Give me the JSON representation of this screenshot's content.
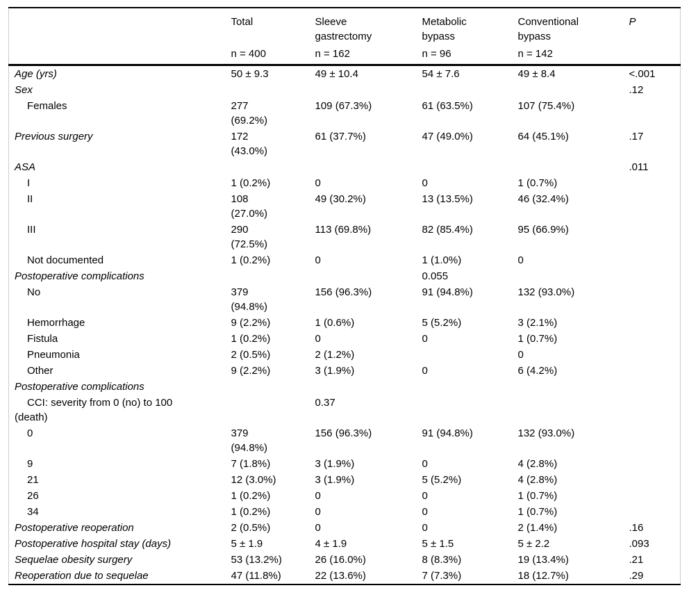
{
  "table": {
    "columns": [
      {
        "key": "rowlabel",
        "label": "",
        "sub": ""
      },
      {
        "key": "total",
        "label": "Total",
        "sub": "n = 400"
      },
      {
        "key": "sleeve",
        "label": "Sleeve\ngastrectomy",
        "sub": "n = 162"
      },
      {
        "key": "metabolic",
        "label": "Metabolic\nbypass",
        "sub": "n = 96"
      },
      {
        "key": "conventional",
        "label": "Conventional\nbypass",
        "sub": "n = 142"
      },
      {
        "key": "p",
        "label": "P",
        "sub": ""
      }
    ],
    "rows": [
      {
        "label": "Age (yrs)",
        "style": "category",
        "cells": [
          "50 ± 9.3",
          "49 ± 10.4",
          "54 ± 7.6",
          "49 ± 8.4",
          "<.001"
        ]
      },
      {
        "label": "Sex",
        "style": "category",
        "cells": [
          "",
          "",
          "",
          "",
          ".12"
        ]
      },
      {
        "label": "Females",
        "style": "item",
        "cells": [
          "277\n(69.2%)",
          "109 (67.3%)",
          "61 (63.5%)",
          "107 (75.4%)",
          ""
        ]
      },
      {
        "label": "Previous surgery",
        "style": "category",
        "cells": [
          "172\n(43.0%)",
          "61 (37.7%)",
          "47 (49.0%)",
          "64 (45.1%)",
          ".17"
        ]
      },
      {
        "label": "ASA",
        "style": "category",
        "cells": [
          "",
          "",
          "",
          "",
          ".011"
        ]
      },
      {
        "label": "I",
        "style": "item",
        "cells": [
          "1 (0.2%)",
          "0",
          "0",
          "1 (0.7%)",
          ""
        ]
      },
      {
        "label": "II",
        "style": "item",
        "cells": [
          "108\n(27.0%)",
          "49 (30.2%)",
          "13 (13.5%)",
          "46 (32.4%)",
          ""
        ]
      },
      {
        "label": "III",
        "style": "item",
        "cells": [
          "290\n(72.5%)",
          "113 (69.8%)",
          "82 (85.4%)",
          "95 (66.9%)",
          ""
        ]
      },
      {
        "label": "Not documented",
        "style": "item",
        "cells": [
          "1 (0.2%)",
          "0",
          "1 (1.0%)",
          "0",
          ""
        ]
      },
      {
        "label": "Postoperative complications",
        "style": "category",
        "cells": [
          "",
          "",
          "0.055",
          "",
          ""
        ]
      },
      {
        "label": "No",
        "style": "item",
        "cells": [
          "379\n(94.8%)",
          "156 (96.3%)",
          "91 (94.8%)",
          "132 (93.0%)",
          ""
        ]
      },
      {
        "label": "Hemorrhage",
        "style": "item",
        "cells": [
          "9 (2.2%)",
          "1 (0.6%)",
          "5 (5.2%)",
          "3 (2.1%)",
          ""
        ]
      },
      {
        "label": "Fistula",
        "style": "item",
        "cells": [
          "1 (0.2%)",
          "0",
          "0",
          "1 (0.7%)",
          ""
        ]
      },
      {
        "label": "Pneumonia",
        "style": "item",
        "cells": [
          "2 (0.5%)",
          "2 (1.2%)",
          "",
          "0",
          ""
        ]
      },
      {
        "label": "Other",
        "style": "item",
        "cells": [
          "9 (2.2%)",
          "3 (1.9%)",
          "0",
          "6 (4.2%)",
          ""
        ]
      },
      {
        "label": "Postoperative complications",
        "style": "category",
        "cells": [
          "",
          "",
          "",
          "",
          ""
        ]
      },
      {
        "label": "CCI: severity from 0 (no) to 100\n(death)",
        "style": "item",
        "cells": [
          "",
          "0.37",
          "",
          "",
          ""
        ]
      },
      {
        "label": "0",
        "style": "item",
        "cells": [
          "379\n(94.8%)",
          "156 (96.3%)",
          "91 (94.8%)",
          "132 (93.0%)",
          ""
        ]
      },
      {
        "label": "9",
        "style": "item",
        "cells": [
          "7 (1.8%)",
          "3 (1.9%)",
          "0",
          "4 (2.8%)",
          ""
        ]
      },
      {
        "label": "21",
        "style": "item",
        "cells": [
          "12 (3.0%)",
          "3 (1.9%)",
          "5 (5.2%)",
          "4 (2.8%)",
          ""
        ]
      },
      {
        "label": "26",
        "style": "item",
        "cells": [
          "1 (0.2%)",
          "0",
          "0",
          "1 (0.7%)",
          ""
        ]
      },
      {
        "label": "34",
        "style": "item",
        "cells": [
          "1 (0.2%)",
          "0",
          "0",
          "1 (0.7%)",
          ""
        ]
      },
      {
        "label": "Postoperative reoperation",
        "style": "category",
        "cells": [
          "2 (0.5%)",
          "0",
          "0",
          "2 (1.4%)",
          ".16"
        ]
      },
      {
        "label": "Postoperative hospital stay (days)",
        "style": "category",
        "cells": [
          "5 ± 1.9",
          "4 ± 1.9",
          "5 ± 1.5",
          "5 ± 2.2",
          ".093"
        ]
      },
      {
        "label": "Sequelae obesity surgery",
        "style": "category",
        "cells": [
          "53 (13.2%)",
          "26 (16.0%)",
          "8 (8.3%)",
          "19 (13.4%)",
          ".21"
        ]
      },
      {
        "label": "Reoperation due to sequelae",
        "style": "category",
        "cells": [
          "47 (11.8%)",
          "22 (13.6%)",
          "7 (7.3%)",
          "18 (12.7%)",
          ".29"
        ]
      }
    ]
  }
}
